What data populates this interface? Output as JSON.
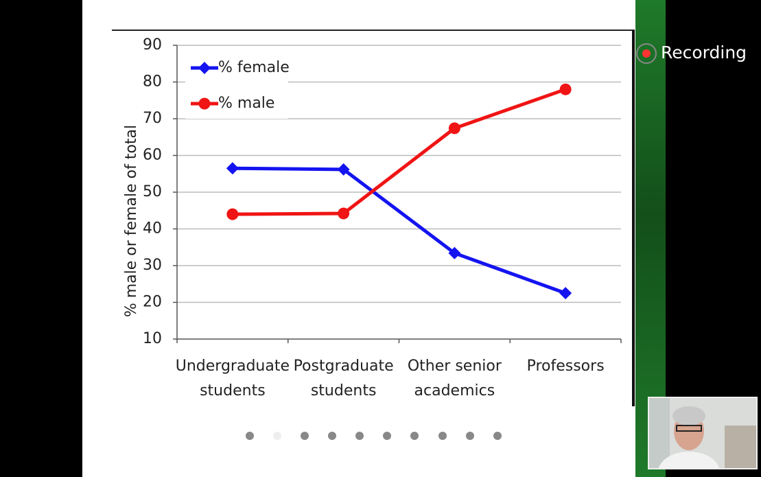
{
  "chart_data": {
    "type": "line",
    "ylabel": "% male or female of total",
    "categories": [
      "Undergraduate students",
      "Postgraduate students",
      "Other senior academics",
      "Professors"
    ],
    "series": [
      {
        "name": "% female",
        "color": "#1414f0",
        "marker": "diamond",
        "values": [
          56.5,
          56.2,
          33.4,
          22.5
        ]
      },
      {
        "name": "% male",
        "color": "#f01414",
        "marker": "circle",
        "values": [
          44,
          44.2,
          67.4,
          78
        ]
      }
    ],
    "ylim": [
      10,
      90
    ],
    "yticks": [
      10,
      20,
      30,
      40,
      50,
      60,
      70,
      80,
      90
    ],
    "grid": true,
    "legend": "top-left"
  },
  "recording_label": "Recording"
}
